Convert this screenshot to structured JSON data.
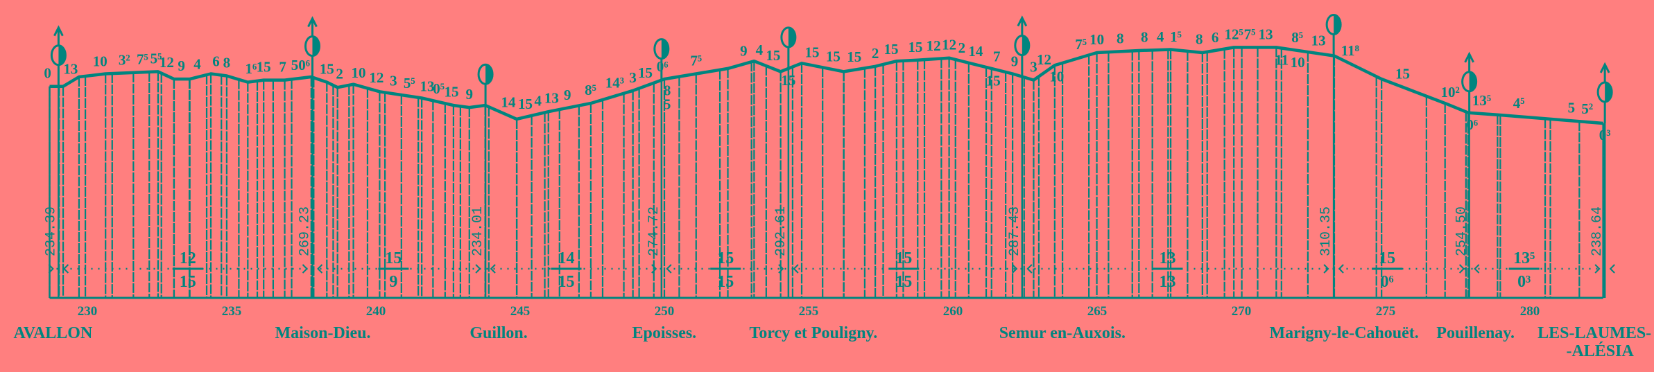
{
  "colors": {
    "background": "#ff7f7f",
    "ink": "#00857f"
  },
  "km_axis": {
    "ticks": [
      230,
      235,
      240,
      245,
      250,
      255,
      260,
      265,
      270,
      275,
      280
    ]
  },
  "stations": [
    {
      "name": "AVALLON",
      "km": 229.0,
      "altitude": "234.39",
      "arrow": true,
      "icon": "half-filled-circle-icon"
    },
    {
      "name": "Maison-Dieu.",
      "km": 237.8,
      "altitude": "269.23",
      "arrow": true,
      "icon": "half-filled-circle-icon"
    },
    {
      "name": "Guillon.",
      "km": 243.8,
      "altitude": "234.01",
      "arrow": false,
      "icon": "half-filled-circle-icon"
    },
    {
      "name": "Epoisses.",
      "km": 249.9,
      "altitude": "274.72",
      "arrow": false,
      "icon": "half-filled-circle-icon"
    },
    {
      "name": "Torcy et Pouligny.",
      "km": 254.3,
      "altitude": "292.61",
      "arrow": false,
      "icon": "half-filled-circle-icon"
    },
    {
      "name": "Semur en-Auxois.",
      "km": 262.4,
      "altitude": "287.43",
      "arrow": true,
      "icon": "half-filled-circle-icon"
    },
    {
      "name": "Marigny-le-Cahouët.",
      "km": 273.2,
      "altitude": "310.35",
      "arrow": false,
      "icon": "half-filled-circle-icon"
    },
    {
      "name": "Pouillenay.",
      "km": 277.9,
      "altitude": "254.50",
      "arrow": true,
      "icon": "half-filled-circle-icon"
    },
    {
      "name": "LES-LAUMES-",
      "name2": "-ALÉSIA",
      "km": 282.6,
      "altitude": "238.64",
      "arrow": true,
      "icon": "half-filled-circle-icon"
    }
  ],
  "profile": [
    [
      228.69,
      234.4
    ],
    [
      229.16,
      234.4
    ],
    [
      229.71,
      245.2
    ],
    [
      230.63,
      248.8
    ],
    [
      232.45,
      251.2
    ],
    [
      233.0,
      242.8
    ],
    [
      233.55,
      242.8
    ],
    [
      234.28,
      248.8
    ],
    [
      234.83,
      246.4
    ],
    [
      235.56,
      239.2
    ],
    [
      236.11,
      241.6
    ],
    [
      236.84,
      241.6
    ],
    [
      237.76,
      245.2
    ],
    [
      238.3,
      239.2
    ],
    [
      238.67,
      233.2
    ],
    [
      239.22,
      236.8
    ],
    [
      240.13,
      228.4
    ],
    [
      241.59,
      221.2
    ],
    [
      242.69,
      212.8
    ],
    [
      243.24,
      210.4
    ],
    [
      243.79,
      212.8
    ],
    [
      244.88,
      197.2
    ],
    [
      245.98,
      205.6
    ],
    [
      247.45,
      215.2
    ],
    [
      248.91,
      229.6
    ],
    [
      250.0,
      242.8
    ],
    [
      251.1,
      248.8
    ],
    [
      252.2,
      254.8
    ],
    [
      253.11,
      263.2
    ],
    [
      254.03,
      251.2
    ],
    [
      254.76,
      260.8
    ],
    [
      256.22,
      251.2
    ],
    [
      257.31,
      257.2
    ],
    [
      258.05,
      263.2
    ],
    [
      258.78,
      264.4
    ],
    [
      259.87,
      266.8
    ],
    [
      261.34,
      254.8
    ],
    [
      262.07,
      248.8
    ],
    [
      262.8,
      241.6
    ],
    [
      263.53,
      258.4
    ],
    [
      264.99,
      272.8
    ],
    [
      266.45,
      275.2
    ],
    [
      267.55,
      276.4
    ],
    [
      268.65,
      272.8
    ],
    [
      269.74,
      278.8
    ],
    [
      271.21,
      278.8
    ],
    [
      273.22,
      269.2
    ],
    [
      274.86,
      242.8
    ],
    [
      277.06,
      215.2
    ],
    [
      277.86,
      204.4
    ],
    [
      278.88,
      202.0
    ],
    [
      280.71,
      197.2
    ],
    [
      282.54,
      192.4
    ]
  ],
  "gradient_labels_above": [
    {
      "t": "0",
      "km": 228.62
    },
    {
      "t": "13",
      "km": 229.42
    },
    {
      "t": "10",
      "km": 230.44
    },
    {
      "t": "3²",
      "km": 231.28
    },
    {
      "t": "7⁵",
      "km": 231.91
    },
    {
      "t": "5⁵",
      "km": 232.38
    },
    {
      "t": "12",
      "km": 232.75
    },
    {
      "t": "9",
      "km": 233.26
    },
    {
      "t": "4",
      "km": 233.81
    },
    {
      "t": "6",
      "km": 234.46
    },
    {
      "t": "8",
      "km": 234.83
    },
    {
      "t": "1⁶",
      "km": 235.67
    },
    {
      "t": "15",
      "km": 236.11
    },
    {
      "t": "7",
      "km": 236.77
    },
    {
      "t": "50⁶",
      "km": 237.39
    },
    {
      "t": "15",
      "km": 238.3
    },
    {
      "t": "2",
      "km": 238.74
    },
    {
      "t": "10",
      "km": 239.4
    },
    {
      "t": "12",
      "km": 240.02
    },
    {
      "t": "3",
      "km": 240.61
    },
    {
      "t": "5⁵",
      "km": 241.16
    },
    {
      "t": "13",
      "km": 241.78
    },
    {
      "t": "0⁵",
      "km": 242.18
    },
    {
      "t": "15",
      "km": 242.62
    },
    {
      "t": "9",
      "km": 243.24
    },
    {
      "t": "14",
      "km": 244.59
    },
    {
      "t": "15",
      "km": 245.18
    },
    {
      "t": "4",
      "km": 245.62
    },
    {
      "t": "13",
      "km": 246.09
    },
    {
      "t": "9",
      "km": 246.64
    },
    {
      "t": "8⁵",
      "km": 247.44
    },
    {
      "t": "14³",
      "km": 248.28
    },
    {
      "t": "3",
      "km": 248.91
    },
    {
      "t": "15",
      "km": 249.34
    },
    {
      "t": "0⁶",
      "km": 249.93
    },
    {
      "t": "7⁵",
      "km": 251.1
    },
    {
      "t": "9",
      "km": 252.75
    },
    {
      "t": "4",
      "km": 253.29
    },
    {
      "t": "15",
      "km": 253.77
    },
    {
      "t": "15",
      "km": 255.12
    },
    {
      "t": "15",
      "km": 255.85
    },
    {
      "t": "15",
      "km": 256.58
    },
    {
      "t": "2",
      "km": 257.31
    },
    {
      "t": "15",
      "km": 257.86
    },
    {
      "t": "15",
      "km": 258.7
    },
    {
      "t": "12",
      "km": 259.33
    },
    {
      "t": "12",
      "km": 259.87
    },
    {
      "t": "2",
      "km": 260.31
    },
    {
      "t": "14",
      "km": 260.79
    },
    {
      "t": "7",
      "km": 261.52
    },
    {
      "t": "9",
      "km": 262.14
    },
    {
      "t": "3",
      "km": 262.8
    },
    {
      "t": "12",
      "km": 263.16
    },
    {
      "t": "7⁵",
      "km": 264.44
    },
    {
      "t": "10",
      "km": 264.99
    },
    {
      "t": "8",
      "km": 265.8
    },
    {
      "t": "8",
      "km": 266.64
    },
    {
      "t": "4",
      "km": 267.19
    },
    {
      "t": "1⁵",
      "km": 267.73
    },
    {
      "t": "8",
      "km": 268.54
    },
    {
      "t": "6",
      "km": 269.09
    },
    {
      "t": "12⁵",
      "km": 269.74
    },
    {
      "t": "7⁵",
      "km": 270.29
    },
    {
      "t": "13",
      "km": 270.84
    },
    {
      "t": "8⁵",
      "km": 271.94
    },
    {
      "t": "13",
      "km": 272.67
    },
    {
      "t": "11⁸",
      "km": 273.77
    },
    {
      "t": "15",
      "km": 275.59
    },
    {
      "t": "10²",
      "km": 277.24
    },
    {
      "t": "13⁵",
      "km": 278.33
    },
    {
      "t": "4⁵",
      "km": 279.62
    },
    {
      "t": "5",
      "km": 281.44
    },
    {
      "t": "5²",
      "km": 281.99
    }
  ],
  "gradient_labels_below": [
    {
      "t": "8",
      "km": 250.1
    },
    {
      "t": "5",
      "km": 250.1,
      "low": true
    },
    {
      "t": "15",
      "km": 254.3
    },
    {
      "t": "15",
      "km": 261.4
    },
    {
      "t": "10",
      "km": 263.6
    },
    {
      "t": "11",
      "km": 271.4
    },
    {
      "t": "10",
      "km": 271.95
    },
    {
      "t": "0⁶",
      "km": 278.0
    },
    {
      "t": "0³",
      "km": 282.6
    }
  ],
  "section_fractions": [
    {
      "top": "12",
      "bottom": "15",
      "km": 233.48
    },
    {
      "top": "15",
      "bottom": "9",
      "km": 240.61
    },
    {
      "top": "14",
      "bottom": "15",
      "km": 246.6
    },
    {
      "top": "15",
      "bottom": "15",
      "km": 252.12
    },
    {
      "top": "15",
      "bottom": "15",
      "km": 258.3
    },
    {
      "top": "13",
      "bottom": "13",
      "km": 267.44
    },
    {
      "top": "15",
      "bottom": "0⁶",
      "km": 275.05
    },
    {
      "top": "13⁵",
      "bottom": "0³",
      "km": 279.8
    }
  ]
}
